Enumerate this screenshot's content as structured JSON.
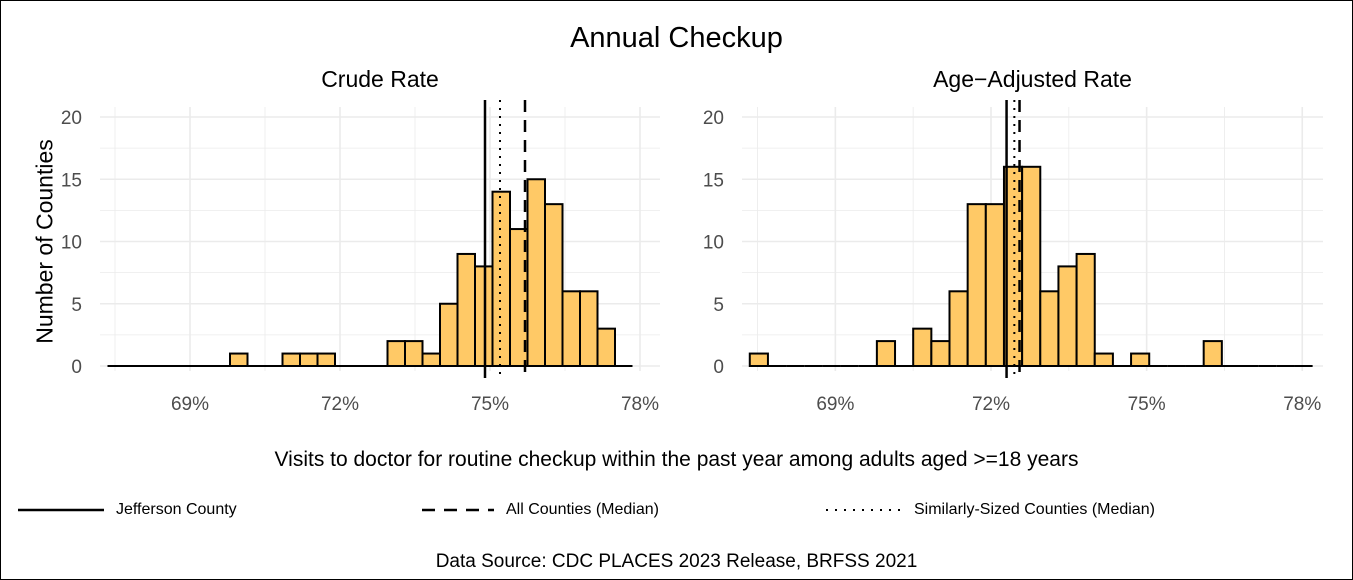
{
  "title": "Annual Checkup",
  "ylabel": "Number of Counties",
  "xcaption": "Visits to doctor for routine checkup within the past year among adults aged >=18 years",
  "source": "Data Source: CDC PLACES 2023 Release, BRFSS 2021",
  "colors": {
    "bar_fill": "#FFC966",
    "bar_stroke": "#000000",
    "grid": "#EBEBEB",
    "axis_text": "#4D4D4D"
  },
  "legend": [
    {
      "label": "Jefferson County",
      "style": "solid"
    },
    {
      "label": "All Counties (Median)",
      "style": "dashed"
    },
    {
      "label": "Similarly-Sized Counties (Median)",
      "style": "dotted"
    }
  ],
  "chart_data": [
    {
      "type": "bar",
      "title": "Crude Rate",
      "xlabel": "Visits to doctor for routine checkup within the past year among adults aged >=18 years",
      "ylabel": "Number of Counties",
      "xlim": [
        67.2,
        78.4
      ],
      "ylim": [
        0,
        20
      ],
      "x_ticks": [
        "69%",
        "72%",
        "75%",
        "78%"
      ],
      "y_ticks": [
        "0",
        "5",
        "10",
        "15",
        "20"
      ],
      "bin_width": 0.35,
      "bins": [
        {
          "x0": 67.35,
          "count": 0
        },
        {
          "x0": 67.7,
          "count": 0
        },
        {
          "x0": 68.05,
          "count": 0
        },
        {
          "x0": 68.4,
          "count": 0
        },
        {
          "x0": 68.75,
          "count": 0
        },
        {
          "x0": 69.1,
          "count": 0
        },
        {
          "x0": 69.45,
          "count": 0
        },
        {
          "x0": 69.8,
          "count": 1
        },
        {
          "x0": 70.15,
          "count": 0
        },
        {
          "x0": 70.5,
          "count": 0
        },
        {
          "x0": 70.85,
          "count": 1
        },
        {
          "x0": 71.2,
          "count": 1
        },
        {
          "x0": 71.55,
          "count": 1
        },
        {
          "x0": 71.9,
          "count": 0
        },
        {
          "x0": 72.25,
          "count": 0
        },
        {
          "x0": 72.6,
          "count": 0
        },
        {
          "x0": 72.95,
          "count": 2
        },
        {
          "x0": 73.3,
          "count": 2
        },
        {
          "x0": 73.65,
          "count": 1
        },
        {
          "x0": 74.0,
          "count": 5
        },
        {
          "x0": 74.35,
          "count": 9
        },
        {
          "x0": 74.7,
          "count": 8
        },
        {
          "x0": 75.05,
          "count": 14
        },
        {
          "x0": 75.4,
          "count": 11
        },
        {
          "x0": 75.75,
          "count": 15
        },
        {
          "x0": 76.1,
          "count": 13
        },
        {
          "x0": 76.45,
          "count": 6
        },
        {
          "x0": 76.8,
          "count": 6
        },
        {
          "x0": 77.15,
          "count": 3
        },
        {
          "x0": 77.5,
          "count": 0
        }
      ],
      "reference_lines": [
        {
          "name": "Jefferson County",
          "x": 74.9,
          "style": "solid"
        },
        {
          "name": "Similarly-Sized Counties (Median)",
          "x": 75.2,
          "style": "dotted"
        },
        {
          "name": "All Counties (Median)",
          "x": 75.7,
          "style": "dashed"
        }
      ]
    },
    {
      "type": "bar",
      "title": "Age−Adjusted Rate",
      "xlabel": "Visits to doctor for routine checkup within the past year among adults aged >=18 years",
      "ylabel": "",
      "xlim": [
        67.2,
        78.4
      ],
      "ylim": [
        0,
        20
      ],
      "x_ticks": [
        "69%",
        "72%",
        "75%",
        "78%"
      ],
      "y_ticks": [
        "0",
        "5",
        "10",
        "15",
        "20"
      ],
      "bin_width": 0.35,
      "bins": [
        {
          "x0": 67.35,
          "count": 1
        },
        {
          "x0": 67.7,
          "count": 0
        },
        {
          "x0": 68.05,
          "count": 0
        },
        {
          "x0": 68.4,
          "count": 0
        },
        {
          "x0": 68.75,
          "count": 0
        },
        {
          "x0": 69.1,
          "count": 0
        },
        {
          "x0": 69.45,
          "count": 0
        },
        {
          "x0": 69.8,
          "count": 2
        },
        {
          "x0": 70.15,
          "count": 0
        },
        {
          "x0": 70.5,
          "count": 3
        },
        {
          "x0": 70.85,
          "count": 2
        },
        {
          "x0": 71.2,
          "count": 6
        },
        {
          "x0": 71.55,
          "count": 13
        },
        {
          "x0": 71.9,
          "count": 13
        },
        {
          "x0": 72.25,
          "count": 16
        },
        {
          "x0": 72.6,
          "count": 16
        },
        {
          "x0": 72.95,
          "count": 6
        },
        {
          "x0": 73.3,
          "count": 8
        },
        {
          "x0": 73.65,
          "count": 9
        },
        {
          "x0": 74.0,
          "count": 1
        },
        {
          "x0": 74.35,
          "count": 0
        },
        {
          "x0": 74.7,
          "count": 1
        },
        {
          "x0": 75.05,
          "count": 0
        },
        {
          "x0": 75.4,
          "count": 0
        },
        {
          "x0": 75.75,
          "count": 0
        },
        {
          "x0": 76.1,
          "count": 2
        },
        {
          "x0": 76.45,
          "count": 0
        },
        {
          "x0": 76.8,
          "count": 0
        },
        {
          "x0": 77.15,
          "count": 0
        },
        {
          "x0": 77.5,
          "count": 0
        },
        {
          "x0": 77.85,
          "count": 0
        }
      ],
      "reference_lines": [
        {
          "name": "Jefferson County",
          "x": 72.3,
          "style": "solid"
        },
        {
          "name": "Similarly-Sized Counties (Median)",
          "x": 72.45,
          "style": "dotted"
        },
        {
          "name": "All Counties (Median)",
          "x": 72.55,
          "style": "dashed"
        }
      ]
    }
  ]
}
